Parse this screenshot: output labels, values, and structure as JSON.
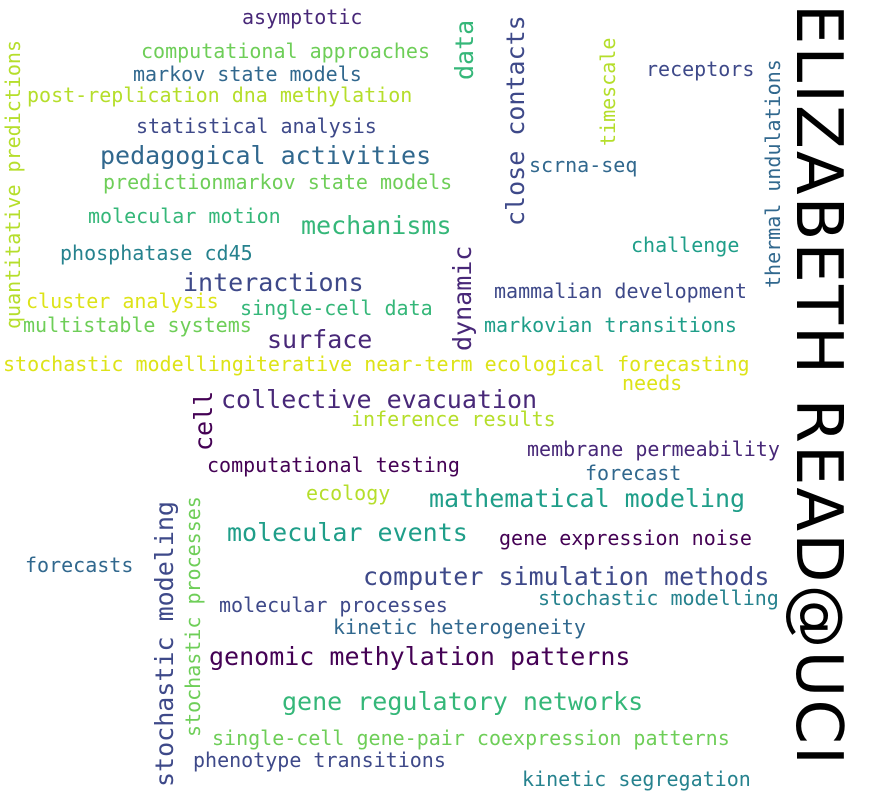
{
  "title": "ELIZABETH READ@UCI",
  "words": {
    "asymptotic": "asymptotic",
    "computational_approaches": "computational approaches",
    "markov_state_models": "markov state models",
    "post_replication": "post-replication dna methylation",
    "statistical_analysis": "statistical analysis",
    "pedagogical_activities": "pedagogical activities",
    "prediction_markov": "predictionmarkov state models",
    "molecular_motion": "molecular motion",
    "mechanisms": "mechanisms",
    "phosphatase": "phosphatase cd45",
    "interactions": "interactions",
    "cluster_analysis": "cluster analysis",
    "single_cell_data": "single-cell data",
    "multistable_systems": "multistable systems",
    "surface": "surface",
    "stochastic_iterative": "stochastic modellingiterative near-term ecological forecasting",
    "needs": "needs",
    "collective_evacuation": "collective evacuation",
    "inference_results": "inference results",
    "membrane_permeability": "membrane permeability",
    "computational_testing": "computational testing",
    "forecast": "forecast",
    "ecology": "ecology",
    "mathematical_modeling": "mathematical modeling",
    "molecular_events": "molecular events",
    "gene_expression_noise": "gene expression noise",
    "forecasts": "forecasts",
    "computer_simulation": "computer simulation methods",
    "molecular_processes": "molecular processes",
    "stochastic_modelling": "stochastic modelling",
    "kinetic_heterogeneity": "kinetic heterogeneity",
    "genomic_methylation": "genomic methylation patterns",
    "gene_regulatory": "gene regulatory networks",
    "single_cell_gene_pair": "single-cell gene-pair coexpression patterns",
    "phenotype_transitions": "phenotype transitions",
    "kinetic_segregation": "kinetic segregation",
    "receptors": "receptors",
    "scrna_seq": "scrna-seq",
    "challenge": "challenge",
    "mammalian_development": "mammalian development",
    "markovian_transitions": "markovian transitions",
    "quantitative_predictions": "quantitative predictions",
    "data": "data",
    "close_contacts": "close contacts",
    "timescale": "timescale",
    "thermal_undulations": "thermal undulations",
    "dynamic": "dynamic",
    "cell": "cell",
    "stochastic_modeling": "stochastic modeling",
    "stochastic_processes": "stochastic processes"
  },
  "colors": {
    "dark_purple": "#440154",
    "purple": "#482878",
    "indigo": "#3e4989",
    "blue": "#31688e",
    "teal": "#26828e",
    "aqua": "#1f9e89",
    "green": "#35b779",
    "lime": "#6ece58",
    "yellow_green": "#b5de2b",
    "yellow": "#dde318"
  }
}
